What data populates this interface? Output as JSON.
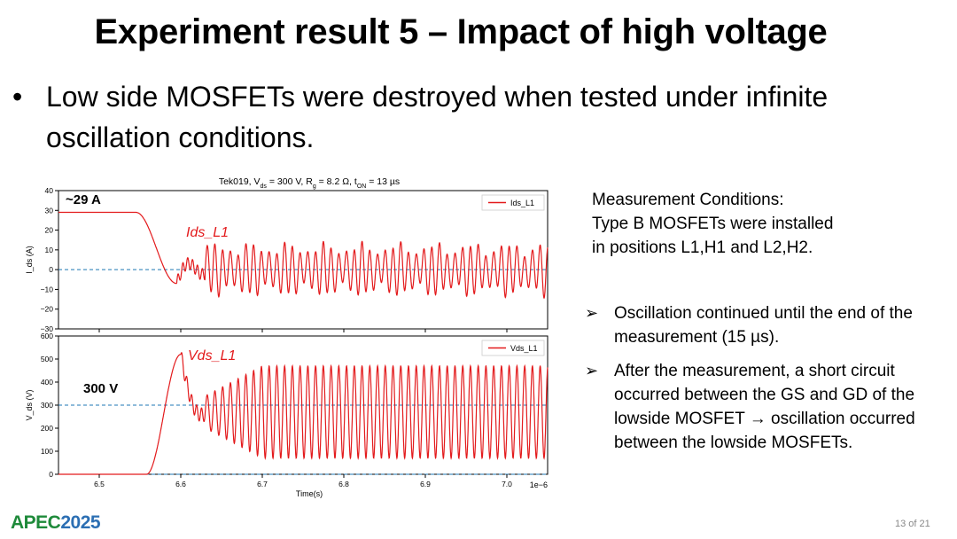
{
  "slide": {
    "title": "Experiment result 5 – Impact of high voltage",
    "bullet": "Low side MOSFETs were destroyed when tested under infinite oscillation conditions.",
    "conditions": [
      "Measurement Conditions:",
      "Type B MOSFETs were installed",
      "in positions L1,H1 and L2,H2."
    ],
    "observations": [
      "Oscillation continued until the end of the measurement (15 µs).",
      "After the measurement, a short circuit occurred between the GS and GD of the lowside MOSFET → oscillation occurred between the lowside MOSFETs."
    ],
    "logo": {
      "part1": "APEC",
      "part2": "2025"
    },
    "page_number": "13 of 21",
    "colors": {
      "trace": "#e31a1c",
      "ref_line": "#1f77b4",
      "logo_green": "#1e8a3a",
      "logo_blue": "#2c6fb3"
    }
  },
  "chart_data": {
    "type": "line",
    "title": "Tek019, V_ds = 300 V, R_g = 8.2 Ω, t_ON = 13 µs",
    "xlabel": "Time(s)",
    "x_offset_label": "1e−6",
    "xlim": [
      6.45,
      7.05
    ],
    "xticks": [
      "6.5",
      "6.6",
      "6.7",
      "6.8",
      "6.9",
      "7.0"
    ],
    "panels": [
      {
        "ylabel": "I_ds (A)",
        "ylim": [
          -30,
          40
        ],
        "yticks": [
          "40",
          "30",
          "20",
          "10",
          "0",
          "−10",
          "−20",
          "−30"
        ],
        "ref_line": 0,
        "legend": "Ids_L1",
        "trace_label": "Ids_L1",
        "annotation": "~29 A",
        "series": {
          "name": "Ids_L1",
          "steady_value": 29,
          "fall_start": 6.545,
          "fall_end": 6.595,
          "min_value": -7,
          "oscillation_start": 6.63,
          "oscillation_center": 0,
          "oscillation_amplitude": 13,
          "oscillation_period": 0.0095,
          "end_time": 7.05
        }
      },
      {
        "ylabel": "V_ds (V)",
        "ylim": [
          0,
          600
        ],
        "yticks": [
          "600",
          "500",
          "400",
          "300",
          "200",
          "100",
          "0"
        ],
        "ref_lines": [
          300,
          0
        ],
        "legend": "Vds_L1",
        "trace_label": "Vds_L1",
        "annotation": "300 V",
        "series": {
          "name": "Vds_L1",
          "initial_value": 0,
          "rise_start": 6.558,
          "peak_time": 6.6,
          "peak_value": 520,
          "oscillation_start": 6.63,
          "oscillation_center": 270,
          "oscillation_amplitude": 200,
          "oscillation_period": 0.0095,
          "end_time": 7.05
        }
      }
    ]
  }
}
